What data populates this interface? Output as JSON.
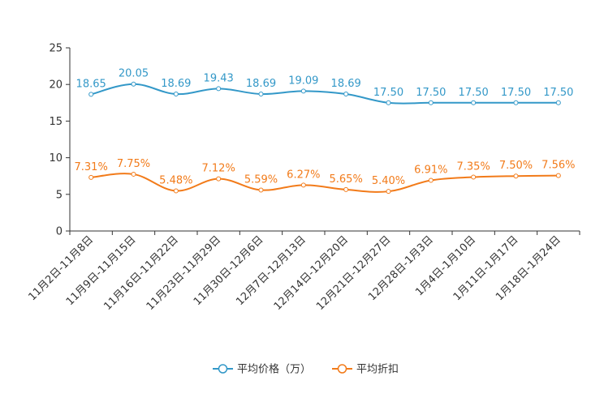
{
  "chart_data": {
    "type": "line",
    "title": "",
    "xlabel": "",
    "ylabel": "",
    "ylim": [
      0,
      25
    ],
    "yticks": [
      0,
      5,
      10,
      15,
      20,
      25
    ],
    "grid": false,
    "legend": "bottom-center",
    "categories": [
      "11月2日-11月8日",
      "11月9日-11月15日",
      "11月16日-11月22日",
      "11月23日-11月29日",
      "11月30日-12月6日",
      "12月7日-12月13日",
      "12月14日-12月20日",
      "12月21日-12月27日",
      "12月28日-1月3日",
      "1月4日-1月10日",
      "1月11日-1月17日",
      "1月18日-1月24日"
    ],
    "series": [
      {
        "name": "平均价格（万）",
        "color": "#3398c8",
        "values": [
          18.65,
          20.05,
          18.69,
          19.43,
          18.69,
          19.09,
          18.69,
          17.5,
          17.5,
          17.5,
          17.5,
          17.5
        ],
        "labels": [
          "18.65",
          "20.05",
          "18.69",
          "19.43",
          "18.69",
          "19.09",
          "18.69",
          "17.50",
          "17.50",
          "17.50",
          "17.50",
          "17.50"
        ]
      },
      {
        "name": "平均折扣",
        "color": "#f27b1a",
        "values": [
          7.31,
          7.75,
          5.48,
          7.12,
          5.59,
          6.27,
          5.65,
          5.4,
          6.91,
          7.35,
          7.5,
          7.56
        ],
        "labels": [
          "7.31%",
          "7.75%",
          "5.48%",
          "7.12%",
          "5.59%",
          "6.27%",
          "5.65%",
          "5.40%",
          "6.91%",
          "7.35%",
          "7.50%",
          "7.56%"
        ]
      }
    ]
  }
}
